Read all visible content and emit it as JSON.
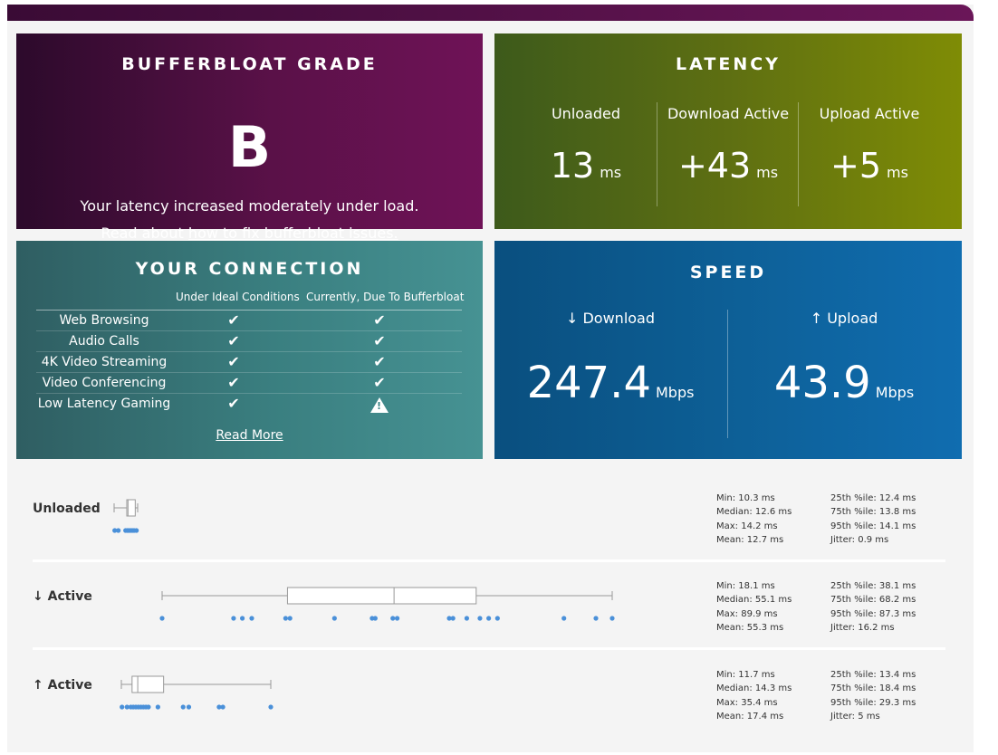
{
  "grade": {
    "title": "BUFFERBLOAT GRADE",
    "letter": "B",
    "description": "Your latency increased moderately under load.",
    "link_prefix": "Read about ",
    "link_text": "how to fix bufferbloat issues."
  },
  "latency": {
    "title": "LATENCY",
    "columns": [
      {
        "label": "Unloaded",
        "value": "13",
        "unit": "ms"
      },
      {
        "label": "Download Active",
        "value": "+43",
        "unit": "ms"
      },
      {
        "label": "Upload Active",
        "value": "+5",
        "unit": "ms"
      }
    ]
  },
  "connection": {
    "title": "YOUR CONNECTION",
    "header_ideal": "Under Ideal Conditions",
    "header_now": "Currently, Due To Bufferbloat",
    "rows": [
      {
        "name": "Web Browsing",
        "ideal": "check",
        "now": "check"
      },
      {
        "name": "Audio Calls",
        "ideal": "check",
        "now": "check"
      },
      {
        "name": "4K Video Streaming",
        "ideal": "check",
        "now": "check"
      },
      {
        "name": "Video Conferencing",
        "ideal": "check",
        "now": "check"
      },
      {
        "name": "Low Latency Gaming",
        "ideal": "check",
        "now": "warning"
      }
    ],
    "read_more": "Read More"
  },
  "speed": {
    "title": "SPEED",
    "download": {
      "label": "↓ Download",
      "value": "247.4",
      "unit": "Mbps"
    },
    "upload": {
      "label": "↑ Upload",
      "value": "43.9",
      "unit": "Mbps"
    }
  },
  "details": [
    {
      "label": "Unloaded",
      "stats": {
        "min": "Min: 10.3 ms",
        "median": "Median: 12.6 ms",
        "max": "Max: 14.2 ms",
        "mean": "Mean: 12.7 ms",
        "p25": "25th %ile: 12.4 ms",
        "p75": "75th %ile: 13.8 ms",
        "p95": "95th %ile: 14.1 ms",
        "jitter": "Jitter: 0.9 ms"
      },
      "box": {
        "whisker_low": 10.3,
        "q1": 12.4,
        "median": 12.6,
        "q3": 13.8,
        "whisker_high": 14.2
      },
      "samples": [
        10.4,
        11.0,
        12.2,
        12.5,
        12.7,
        13.0,
        13.3,
        13.6,
        14.0
      ]
    },
    {
      "label": "↓ Active",
      "stats": {
        "min": "Min: 18.1 ms",
        "median": "Median: 55.1 ms",
        "max": "Max: 89.9 ms",
        "mean": "Mean: 55.3 ms",
        "p25": "25th %ile: 38.1 ms",
        "p75": "75th %ile: 68.2 ms",
        "p95": "95th %ile: 87.3 ms",
        "jitter": "Jitter: 16.2 ms"
      },
      "box": {
        "whisker_low": 18.1,
        "q1": 38.1,
        "median": 55.1,
        "q3": 68.2,
        "whisker_high": 89.9
      },
      "samples": [
        18.1,
        29.5,
        30.9,
        32.4,
        37.8,
        38.5,
        45.6,
        51.6,
        52.1,
        54.9,
        55.6,
        63.9,
        64.5,
        66.7,
        68.8,
        70.2,
        71.6,
        82.2,
        87.3,
        89.9
      ]
    },
    {
      "label": "↑ Active",
      "stats": {
        "min": "Min: 11.7 ms",
        "median": "Median: 14.3 ms",
        "max": "Max: 35.4 ms",
        "mean": "Mean: 17.4 ms",
        "p25": "25th %ile: 13.4 ms",
        "p75": "75th %ile: 18.4 ms",
        "p95": "95th %ile: 29.3 ms",
        "jitter": "Jitter: 5 ms"
      },
      "box": {
        "whisker_low": 11.7,
        "q1": 13.4,
        "median": 14.3,
        "q3": 18.4,
        "whisker_high": 35.4
      },
      "samples": [
        11.8,
        12.6,
        13.2,
        13.6,
        14.0,
        14.4,
        14.8,
        15.2,
        15.6,
        16.0,
        17.5,
        21.5,
        22.4,
        27.2,
        27.8,
        35.4
      ]
    }
  ],
  "colors": {
    "dot": "#4a90d9",
    "box_stroke": "#999999"
  }
}
